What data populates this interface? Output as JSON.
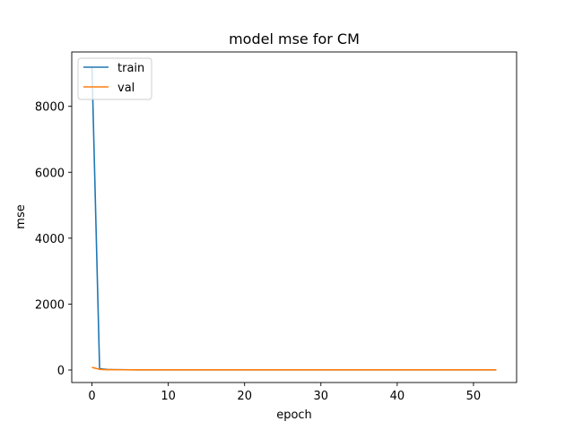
{
  "chart_data": {
    "type": "line",
    "title": "model mse for CM",
    "xlabel": "epoch",
    "ylabel": "mse",
    "xlim": [
      -2.65,
      55.65
    ],
    "ylim": [
      -380,
      9650
    ],
    "xticks": [
      0,
      10,
      20,
      30,
      40,
      50
    ],
    "yticks": [
      0,
      2000,
      4000,
      6000,
      8000
    ],
    "grid": false,
    "legend_position": "upper-left",
    "series": [
      {
        "name": "train",
        "color": "#1f77b4",
        "x": [
          0,
          1,
          2,
          3,
          4,
          5,
          6,
          7,
          8,
          9,
          10,
          11,
          12,
          13,
          14,
          15,
          16,
          17,
          18,
          19,
          20,
          21,
          22,
          23,
          24,
          25,
          26,
          27,
          28,
          29,
          30,
          31,
          32,
          33,
          34,
          35,
          36,
          37,
          38,
          39,
          40,
          41,
          42,
          43,
          44,
          45,
          46,
          47,
          48,
          49,
          50,
          51,
          52,
          53
        ],
        "y": [
          9200,
          40,
          15,
          10,
          8,
          7,
          6,
          6,
          5,
          5,
          5,
          5,
          5,
          5,
          5,
          5,
          5,
          5,
          5,
          5,
          5,
          5,
          5,
          5,
          5,
          5,
          5,
          5,
          5,
          5,
          5,
          5,
          5,
          5,
          5,
          5,
          5,
          5,
          5,
          5,
          5,
          5,
          5,
          5,
          5,
          5,
          5,
          5,
          5,
          5,
          5,
          5,
          5,
          5
        ]
      },
      {
        "name": "val",
        "color": "#ff7f0e",
        "x": [
          0,
          1,
          2,
          3,
          4,
          5,
          6,
          7,
          8,
          9,
          10,
          11,
          12,
          13,
          14,
          15,
          16,
          17,
          18,
          19,
          20,
          21,
          22,
          23,
          24,
          25,
          26,
          27,
          28,
          29,
          30,
          31,
          32,
          33,
          34,
          35,
          36,
          37,
          38,
          39,
          40,
          41,
          42,
          43,
          44,
          45,
          46,
          47,
          48,
          49,
          50,
          51,
          52,
          53
        ],
        "y": [
          80,
          20,
          10,
          8,
          7,
          6,
          6,
          5,
          5,
          5,
          5,
          5,
          5,
          5,
          5,
          5,
          5,
          5,
          5,
          5,
          5,
          5,
          5,
          5,
          5,
          5,
          5,
          5,
          5,
          5,
          5,
          5,
          5,
          5,
          5,
          5,
          5,
          5,
          5,
          5,
          5,
          5,
          5,
          5,
          5,
          5,
          5,
          5,
          5,
          5,
          5,
          5,
          5,
          5
        ]
      }
    ]
  }
}
